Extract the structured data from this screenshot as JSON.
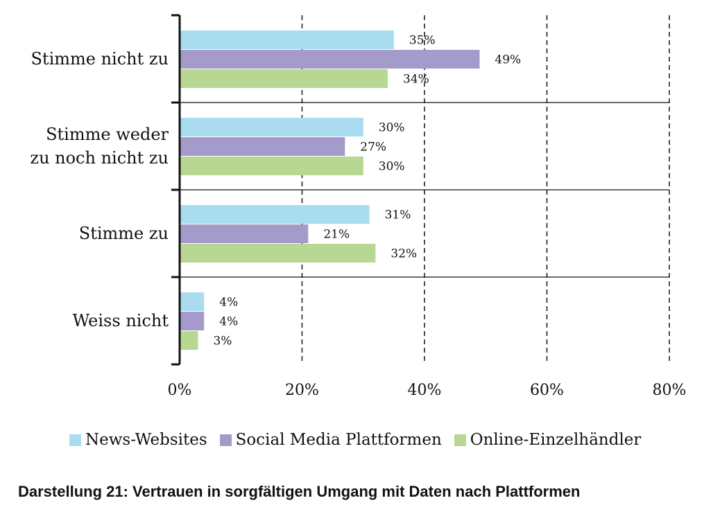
{
  "colors": {
    "news": "#a8dcee",
    "social": "#a49bcb",
    "retail": "#b8d792",
    "axis": "#111111"
  },
  "caption": "Darstellung 21: Vertrauen in sorgfältigen Umgang mit Daten nach Plattformen",
  "chart_data": {
    "type": "bar",
    "orientation": "horizontal",
    "title": "Darstellung 21: Vertrauen in sorgfältigen Umgang mit Daten nach Plattformen",
    "xlabel": "",
    "ylabel": "",
    "xlim": [
      0,
      80
    ],
    "x_ticks": [
      0,
      20,
      40,
      60,
      80
    ],
    "x_tick_labels": [
      "0%",
      "20%",
      "40%",
      "60%",
      "80%"
    ],
    "grid": "vertical dashed",
    "legend_position": "bottom",
    "categories": [
      [
        "Stimme nicht zu"
      ],
      [
        "Stimme weder",
        "zu noch nicht zu"
      ],
      [
        "Stimme zu"
      ],
      [
        "Weiss nicht"
      ]
    ],
    "series": [
      {
        "name": "News-Websites",
        "color_key": "news",
        "values": [
          35,
          30,
          31,
          4
        ],
        "labels": [
          "35%",
          "30%",
          "31%",
          "4%"
        ]
      },
      {
        "name": "Social Media Plattformen",
        "color_key": "social",
        "values": [
          49,
          27,
          21,
          4
        ],
        "labels": [
          "49%",
          "27%",
          "21%",
          "4%"
        ]
      },
      {
        "name": "Online-Einzelhändler",
        "color_key": "retail",
        "values": [
          34,
          30,
          32,
          3
        ],
        "labels": [
          "34%",
          "30%",
          "32%",
          "3%"
        ]
      }
    ]
  }
}
